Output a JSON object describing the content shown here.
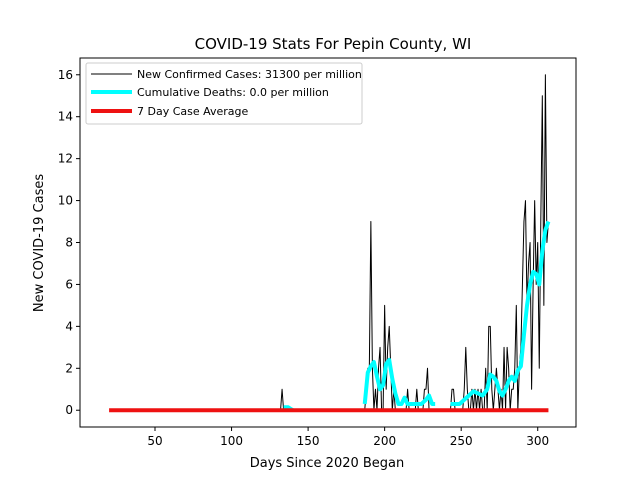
{
  "chart_data": {
    "type": "line",
    "title": "COVID-19 Stats For Pepin County, WI",
    "xlabel": "Days Since 2020 Began",
    "ylabel": "New COVID-19 Cases",
    "xlim": [
      1,
      325
    ],
    "ylim": [
      -0.8,
      16.8
    ],
    "xticks": [
      50,
      100,
      150,
      200,
      250,
      300
    ],
    "yticks": [
      0,
      2,
      4,
      6,
      8,
      10,
      12,
      14,
      16
    ],
    "grid": false,
    "legend_position": "top-left",
    "series": [
      {
        "name": "New Confirmed Cases: 31300 per million",
        "color": "#000000",
        "line_width": 1,
        "points": [
          [
            132,
            0
          ],
          [
            133,
            1
          ],
          [
            134,
            0
          ],
          [
            140,
            0
          ],
          [
            187,
            0
          ],
          [
            189,
            2
          ],
          [
            190,
            2
          ],
          [
            191,
            9
          ],
          [
            192,
            2
          ],
          [
            193,
            0
          ],
          [
            194,
            1
          ],
          [
            195,
            0
          ],
          [
            196,
            2
          ],
          [
            197,
            3
          ],
          [
            198,
            0
          ],
          [
            199,
            0
          ],
          [
            200,
            5
          ],
          [
            201,
            1
          ],
          [
            202,
            3
          ],
          [
            203,
            4
          ],
          [
            204,
            2
          ],
          [
            205,
            0
          ],
          [
            206,
            1
          ],
          [
            207,
            0
          ],
          [
            208,
            0
          ],
          [
            214,
            0
          ],
          [
            215,
            1
          ],
          [
            216,
            0
          ],
          [
            220,
            0
          ],
          [
            221,
            1
          ],
          [
            222,
            0
          ],
          [
            225,
            0
          ],
          [
            226,
            1
          ],
          [
            227,
            1
          ],
          [
            228,
            2
          ],
          [
            229,
            0
          ],
          [
            232,
            0
          ],
          [
            243,
            0
          ],
          [
            244,
            1
          ],
          [
            245,
            1
          ],
          [
            246,
            0
          ],
          [
            250,
            0
          ],
          [
            251,
            0
          ],
          [
            252,
            1
          ],
          [
            253,
            3
          ],
          [
            254,
            1
          ],
          [
            255,
            0
          ],
          [
            256,
            0
          ],
          [
            257,
            1
          ],
          [
            258,
            0
          ],
          [
            259,
            1
          ],
          [
            260,
            0
          ],
          [
            261,
            1
          ],
          [
            262,
            0
          ],
          [
            263,
            1
          ],
          [
            264,
            0
          ],
          [
            265,
            0
          ],
          [
            266,
            2
          ],
          [
            267,
            0
          ],
          [
            268,
            4
          ],
          [
            269,
            4
          ],
          [
            270,
            1
          ],
          [
            271,
            0
          ],
          [
            272,
            1
          ],
          [
            273,
            2
          ],
          [
            274,
            1
          ],
          [
            275,
            0
          ],
          [
            276,
            1
          ],
          [
            277,
            0
          ],
          [
            278,
            3
          ],
          [
            279,
            0
          ],
          [
            280,
            3
          ],
          [
            281,
            2
          ],
          [
            282,
            0
          ],
          [
            283,
            1
          ],
          [
            284,
            1
          ],
          [
            285,
            2
          ],
          [
            286,
            5
          ],
          [
            287,
            0
          ],
          [
            288,
            2
          ],
          [
            289,
            3
          ],
          [
            290,
            6
          ],
          [
            291,
            9
          ],
          [
            292,
            10
          ],
          [
            293,
            5
          ],
          [
            294,
            7
          ],
          [
            295,
            8
          ],
          [
            296,
            1
          ],
          [
            297,
            6
          ],
          [
            298,
            10
          ],
          [
            299,
            6
          ],
          [
            300,
            8
          ],
          [
            301,
            2
          ],
          [
            302,
            9
          ],
          [
            303,
            15
          ],
          [
            304,
            5
          ],
          [
            305,
            16
          ],
          [
            306,
            8
          ],
          [
            307,
            9
          ]
        ]
      },
      {
        "name": "Cumulative Deaths: 0.0 per million",
        "color": "#00ffff",
        "line_width": 4,
        "points": [
          [
            134,
            0.14
          ],
          [
            137,
            0.14
          ],
          [
            140,
            0
          ],
          [
            187,
            0.3
          ],
          [
            189,
            1.8
          ],
          [
            191,
            2.1
          ],
          [
            193,
            2.3
          ],
          [
            195,
            1.6
          ],
          [
            197,
            1.0
          ],
          [
            199,
            1.2
          ],
          [
            201,
            2.2
          ],
          [
            203,
            2.4
          ],
          [
            205,
            1.5
          ],
          [
            207,
            0.8
          ],
          [
            209,
            0.3
          ],
          [
            211,
            0.3
          ],
          [
            213,
            0.6
          ],
          [
            215,
            0.3
          ],
          [
            218,
            0.3
          ],
          [
            221,
            0.3
          ],
          [
            224,
            0.3
          ],
          [
            227,
            0.5
          ],
          [
            229,
            0.7
          ],
          [
            231,
            0.3
          ],
          [
            233,
            0.3
          ],
          [
            243,
            0.3
          ],
          [
            246,
            0.3
          ],
          [
            249,
            0.3
          ],
          [
            252,
            0.5
          ],
          [
            255,
            0.7
          ],
          [
            258,
            0.9
          ],
          [
            261,
            0.8
          ],
          [
            264,
            0.7
          ],
          [
            267,
            1.0
          ],
          [
            269,
            1.7
          ],
          [
            271,
            1.6
          ],
          [
            273,
            1.4
          ],
          [
            275,
            0.9
          ],
          [
            277,
            0.7
          ],
          [
            279,
            1.0
          ],
          [
            281,
            1.4
          ],
          [
            283,
            1.6
          ],
          [
            285,
            1.4
          ],
          [
            287,
            1.9
          ],
          [
            289,
            2.1
          ],
          [
            291,
            3.6
          ],
          [
            293,
            5.0
          ],
          [
            295,
            6.0
          ],
          [
            297,
            6.6
          ],
          [
            299,
            6.5
          ],
          [
            301,
            6.0
          ],
          [
            303,
            7.6
          ],
          [
            305,
            8.6
          ],
          [
            307,
            9.0
          ]
        ]
      },
      {
        "name": "7 Day Case Average",
        "color": "#ee1111",
        "line_width": 4,
        "points": [
          [
            20,
            0
          ],
          [
            307,
            0
          ]
        ]
      }
    ]
  }
}
